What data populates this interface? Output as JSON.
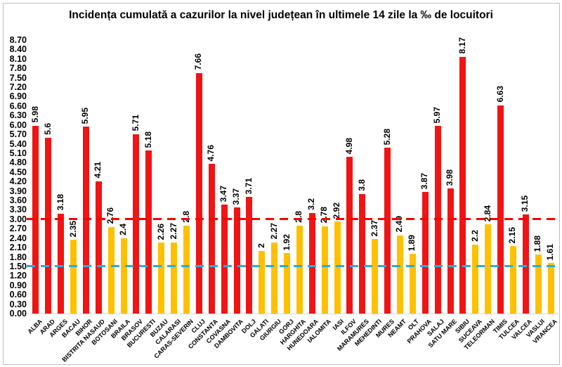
{
  "title": "Incidența cumulată a cazurilor la nivel județean în ultimele 14 zile la ‰ de locuitori",
  "chart_data": {
    "type": "bar",
    "categories": [
      "ALBA",
      "ARAD",
      "ARGES",
      "BACAU",
      "BIHOR",
      "BISTRITA NASAUD",
      "BOTOSANI",
      "BRAILA",
      "BRASOV",
      "BUCURESTI",
      "BUZAU",
      "CALARASI",
      "CARAS-SEVERIN",
      "CLUJ",
      "CONSTANTA",
      "COVASNA",
      "DAMBOVITA",
      "DOLJ",
      "GALATI",
      "GIURGIU",
      "GORJ",
      "HARGHITA",
      "HUNEDOARA",
      "IALOMITA",
      "IASI",
      "ILFOV",
      "MARAMURES",
      "MEHEDINTI",
      "MURES",
      "NEAMT",
      "OLT",
      "PRAHOVA",
      "SALAJ",
      "SATU MARE",
      "SIBIU",
      "SUCEAVA",
      "TELEORMAN",
      "TIMIS",
      "TULCEA",
      "VALCEA",
      "VASLUI",
      "VRANCEA"
    ],
    "values": [
      5.98,
      5.6,
      3.18,
      2.35,
      5.95,
      4.21,
      2.76,
      2.4,
      5.71,
      5.18,
      2.26,
      2.27,
      2.8,
      7.66,
      4.76,
      3.47,
      3.37,
      3.71,
      2,
      2.27,
      1.92,
      2.8,
      3.2,
      2.78,
      2.92,
      4.98,
      3.8,
      2.37,
      5.28,
      2.49,
      1.89,
      3.87,
      5.97,
      3.98,
      8.17,
      2.2,
      2.84,
      6.63,
      2.15,
      3.15,
      1.88,
      1.61
    ],
    "value_labels": [
      "5.98",
      "5.6",
      "3.18",
      "2.35",
      "5.95",
      "4.21",
      "2.76",
      "2.4",
      "5.71",
      "5.18",
      "2.26",
      "2.27",
      "2.8",
      "7.66",
      "4.76",
      "3.47",
      "3.37",
      "3.71",
      "2",
      "2.27",
      "1.92",
      "2.8",
      "3.2",
      "2.78",
      "2.92",
      "4.98",
      "3.8",
      "2.37",
      "5.28",
      "2.49",
      "1.89",
      "3.87",
      "5.97",
      "3.98",
      "8.17",
      "2.2",
      "2.84",
      "6.63",
      "2.15",
      "3.15",
      "1.88",
      "1.61"
    ],
    "xlabel": "",
    "ylabel": "",
    "ylim": [
      0,
      8.7
    ],
    "ytick_step": 0.3,
    "yticks": [
      "0.00",
      "0.30",
      "0.60",
      "0.90",
      "1.20",
      "1.50",
      "1.80",
      "2.10",
      "2.40",
      "2.70",
      "3.00",
      "3.30",
      "3.60",
      "3.90",
      "4.20",
      "4.50",
      "4.80",
      "5.10",
      "5.40",
      "5.70",
      "6.00",
      "6.30",
      "6.60",
      "6.90",
      "7.20",
      "7.50",
      "7.80",
      "8.10",
      "8.40",
      "8.70"
    ],
    "grid": false,
    "legend": false,
    "bar_color_rule": "red if value >= 3.00 else yellow",
    "colors": {
      "bar_above_threshold": "#f01414",
      "bar_below_threshold": "#ffc000",
      "threshold_red": "#ff0000",
      "threshold_blue": "#29abe2",
      "text": "#000000",
      "baseline": "#d9d9d9"
    },
    "thresholds": [
      {
        "name": "red-threshold",
        "value": 3.0,
        "color": "#ff0000",
        "style": "dashed"
      },
      {
        "name": "blue-threshold",
        "value": 1.5,
        "color": "#29abe2",
        "style": "dashed"
      }
    ]
  }
}
